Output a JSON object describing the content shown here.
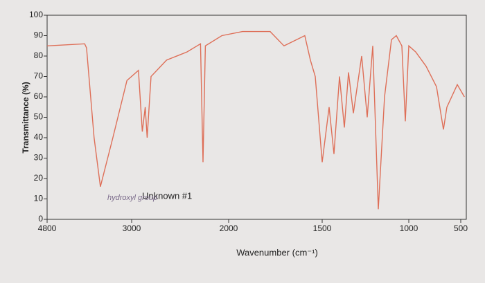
{
  "chart_data": {
    "type": "line",
    "y_label": "Transmittance (%)",
    "x_label": "Wavenumber (cm⁻¹)",
    "annotations": [
      "Unknown #1",
      "hydroxyl group"
    ],
    "xlim": [
      4800,
      450
    ],
    "xticks": [
      4800,
      3000,
      2000,
      1500,
      1000,
      500
    ],
    "ylim": [
      0,
      100
    ],
    "yticks": [
      0,
      10,
      20,
      30,
      40,
      50,
      60,
      70,
      80,
      90,
      100
    ],
    "series": [
      {
        "color": "#de6f58",
        "x": [
          4800,
          4000,
          3960,
          3800,
          3665,
          3400,
          3100,
          2930,
          2890,
          2860,
          2840,
          2800,
          2640,
          2430,
          2290,
          2264,
          2240,
          2070,
          1926,
          1778,
          1704,
          1593,
          1563,
          1537,
          1500,
          1460,
          1432,
          1400,
          1372,
          1348,
          1320,
          1272,
          1240,
          1208,
          1176,
          1140,
          1100,
          1072,
          1040,
          1020,
          1000,
          933,
          833,
          733,
          667,
          633,
          533,
          467
        ],
        "values": [
          85,
          86,
          84,
          40,
          16,
          40,
          68,
          73,
          43,
          55,
          40,
          70,
          78,
          82,
          86,
          28,
          85,
          90,
          92,
          92,
          85,
          90,
          78,
          70,
          28,
          55,
          32,
          70,
          45,
          72,
          52,
          80,
          50,
          85,
          5,
          60,
          88,
          90,
          85,
          48,
          85,
          82,
          75,
          65,
          44,
          55,
          66,
          60
        ]
      }
    ]
  }
}
